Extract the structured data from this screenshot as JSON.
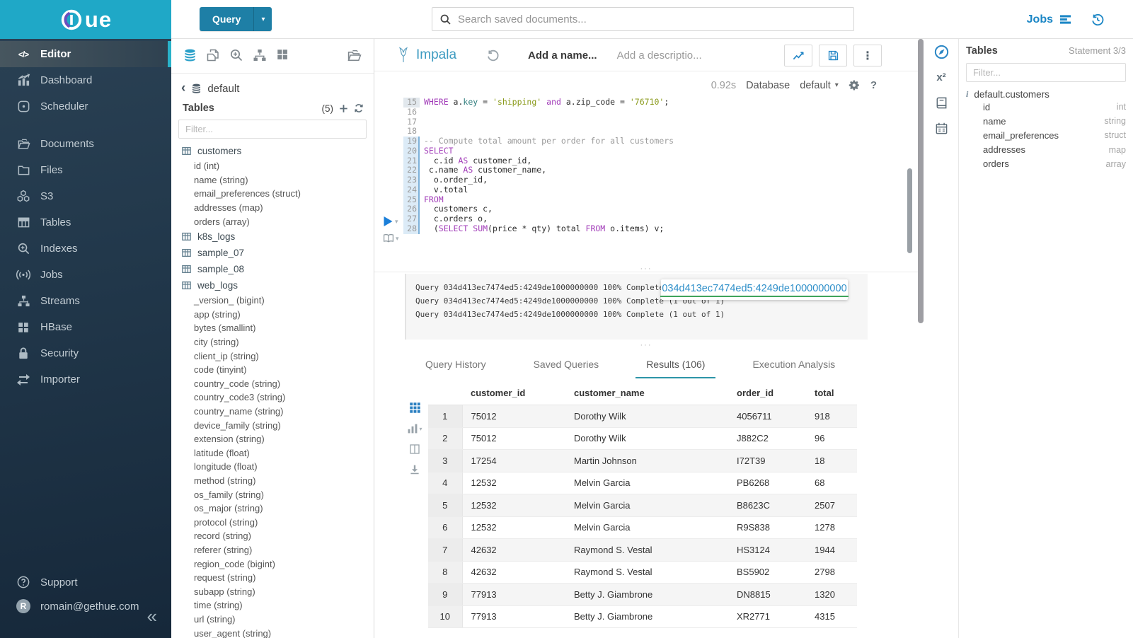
{
  "ui": {
    "caret": "▾",
    "grip": "···",
    "back_arrow": "‹",
    "collapse_icon": "«",
    "kebab": "⋮",
    "functions_glyph": "x²"
  },
  "brand": {
    "logo_text": "ue",
    "accent": "#1FA8C7"
  },
  "topbar": {
    "query_button": "Query",
    "search_placeholder": "Search saved documents...",
    "jobs_label": "Jobs"
  },
  "sidebar": {
    "items": [
      {
        "icon": "code",
        "label": "Editor",
        "active": true
      },
      {
        "icon": "dashboard",
        "label": "Dashboard"
      },
      {
        "icon": "scheduler",
        "label": "Scheduler"
      },
      {
        "spacer": true
      },
      {
        "icon": "documents",
        "label": "Documents"
      },
      {
        "icon": "files",
        "label": "Files"
      },
      {
        "icon": "s3",
        "label": "S3"
      },
      {
        "icon": "tables",
        "label": "Tables"
      },
      {
        "icon": "indexes",
        "label": "Indexes"
      },
      {
        "icon": "jobs",
        "label": "Jobs"
      },
      {
        "icon": "streams",
        "label": "Streams"
      },
      {
        "icon": "hbase",
        "label": "HBase"
      },
      {
        "icon": "security",
        "label": "Security"
      },
      {
        "icon": "importer",
        "label": "Importer"
      }
    ],
    "footer": [
      {
        "icon": "help",
        "label": "Support"
      },
      {
        "icon": "avatar",
        "label": "romain@gethue.com",
        "avatar_letter": "R"
      }
    ]
  },
  "assist_left": {
    "toolbar": [
      {
        "icon": "databases",
        "active": true
      },
      {
        "icon": "documents-copy"
      },
      {
        "icon": "zoom-plus"
      },
      {
        "icon": "sitemap"
      },
      {
        "icon": "apps"
      },
      {
        "icon": "folder-open",
        "right": true
      }
    ],
    "breadcrumb_database": "default",
    "tables_title": "Tables",
    "tables_count": "(5)",
    "filter_placeholder": "Filter...",
    "tree": [
      {
        "name": "customers",
        "columns": [
          {
            "name": "id",
            "type": "int"
          },
          {
            "name": "name",
            "type": "string"
          },
          {
            "name": "email_preferences",
            "type": "struct"
          },
          {
            "name": "addresses",
            "type": "map"
          },
          {
            "name": "orders",
            "type": "array"
          }
        ]
      },
      {
        "name": "k8s_logs",
        "columns": []
      },
      {
        "name": "sample_07",
        "columns": []
      },
      {
        "name": "sample_08",
        "columns": []
      },
      {
        "name": "web_logs",
        "columns": [
          {
            "name": "_version_",
            "type": "bigint"
          },
          {
            "name": "app",
            "type": "string"
          },
          {
            "name": "bytes",
            "type": "smallint"
          },
          {
            "name": "city",
            "type": "string"
          },
          {
            "name": "client_ip",
            "type": "string"
          },
          {
            "name": "code",
            "type": "tinyint"
          },
          {
            "name": "country_code",
            "type": "string"
          },
          {
            "name": "country_code3",
            "type": "string"
          },
          {
            "name": "country_name",
            "type": "string"
          },
          {
            "name": "device_family",
            "type": "string"
          },
          {
            "name": "extension",
            "type": "string"
          },
          {
            "name": "latitude",
            "type": "float"
          },
          {
            "name": "longitude",
            "type": "float"
          },
          {
            "name": "method",
            "type": "string"
          },
          {
            "name": "os_family",
            "type": "string"
          },
          {
            "name": "os_major",
            "type": "string"
          },
          {
            "name": "protocol",
            "type": "string"
          },
          {
            "name": "record",
            "type": "string"
          },
          {
            "name": "referer",
            "type": "string"
          },
          {
            "name": "region_code",
            "type": "bigint"
          },
          {
            "name": "request",
            "type": "string"
          },
          {
            "name": "subapp",
            "type": "string"
          },
          {
            "name": "time",
            "type": "string"
          },
          {
            "name": "url",
            "type": "string"
          },
          {
            "name": "user_agent",
            "type": "string"
          }
        ]
      }
    ]
  },
  "editor": {
    "engine": "Impala",
    "name_placeholder": "Add a name...",
    "description_placeholder": "Add a descriptio...",
    "duration": "0.92s",
    "database_label": "Database",
    "database_value": "default",
    "code_lines": [
      {
        "n": 15,
        "hl": "prev",
        "segs": [
          [
            "kw",
            "WHERE"
          ],
          [
            "t",
            " a."
          ],
          [
            "fld",
            "key"
          ],
          [
            "t",
            " = "
          ],
          [
            "str",
            "'shipping'"
          ],
          [
            "t",
            " "
          ],
          [
            "kw",
            "and"
          ],
          [
            "t",
            " a.zip_code = "
          ],
          [
            "str",
            "'76710'"
          ],
          [
            "t",
            ";"
          ]
        ]
      },
      {
        "n": 16,
        "segs": []
      },
      {
        "n": 17,
        "segs": []
      },
      {
        "n": 18,
        "segs": []
      },
      {
        "n": 19,
        "hl": "cur",
        "segs": [
          [
            "cmt",
            "-- Compute total amount per order for all customers"
          ]
        ]
      },
      {
        "n": 20,
        "hl": "cur",
        "segs": [
          [
            "kw",
            "SELECT"
          ]
        ]
      },
      {
        "n": 21,
        "hl": "cur",
        "segs": [
          [
            "t",
            "  c.id "
          ],
          [
            "kw",
            "AS"
          ],
          [
            "t",
            " customer_id,"
          ]
        ]
      },
      {
        "n": 22,
        "hl": "cur",
        "segs": [
          [
            "t",
            " c.name "
          ],
          [
            "kw",
            "AS"
          ],
          [
            "t",
            " customer_name,"
          ]
        ]
      },
      {
        "n": 23,
        "hl": "cur",
        "segs": [
          [
            "t",
            "  o.order_id,"
          ]
        ]
      },
      {
        "n": 24,
        "hl": "cur",
        "segs": [
          [
            "t",
            "  v.total"
          ]
        ]
      },
      {
        "n": 25,
        "hl": "cur",
        "segs": [
          [
            "kw",
            "FROM"
          ]
        ]
      },
      {
        "n": 26,
        "hl": "cur",
        "segs": [
          [
            "t",
            "  customers c,"
          ]
        ]
      },
      {
        "n": 27,
        "hl": "cur",
        "segs": [
          [
            "t",
            "  c.orders o,"
          ]
        ]
      },
      {
        "n": 28,
        "hl": "cur",
        "segs": [
          [
            "t",
            "  ("
          ],
          [
            "kw",
            "SELECT"
          ],
          [
            "t",
            " "
          ],
          [
            "kw",
            "SUM"
          ],
          [
            "t",
            "(price * qty) total "
          ],
          [
            "kw",
            "FROM"
          ],
          [
            "t",
            " o.items) v;"
          ]
        ]
      }
    ]
  },
  "log": {
    "lines": [
      "Query 034d413ec7474ed5:4249de1000000000 100% Complete (1 out of 1)",
      "Query 034d413ec7474ed5:4249de1000000000 100% Complete (1 out of 1)",
      "Query 034d413ec7474ed5:4249de1000000000 100% Complete (1 out of 1)"
    ],
    "popover_text": "034d413ec7474ed5:4249de1000000000"
  },
  "tabs": [
    {
      "label": "Query History"
    },
    {
      "label": "Saved Queries"
    },
    {
      "label": "Results (106)",
      "active": true
    },
    {
      "label": "Execution Analysis"
    }
  ],
  "results": {
    "columns": [
      "customer_id",
      "customer_name",
      "order_id",
      "total"
    ],
    "rows": [
      [
        "1",
        "75012",
        "Dorothy Wilk",
        "4056711",
        "918"
      ],
      [
        "2",
        "75012",
        "Dorothy Wilk",
        "J882C2",
        "96"
      ],
      [
        "3",
        "17254",
        "Martin Johnson",
        "I72T39",
        "18"
      ],
      [
        "4",
        "12532",
        "Melvin Garcia",
        "PB6268",
        "68"
      ],
      [
        "5",
        "12532",
        "Melvin Garcia",
        "B8623C",
        "2507"
      ],
      [
        "6",
        "12532",
        "Melvin Garcia",
        "R9S838",
        "1278"
      ],
      [
        "7",
        "42632",
        "Raymond S. Vestal",
        "HS3124",
        "1944"
      ],
      [
        "8",
        "42632",
        "Raymond S. Vestal",
        "BS5902",
        "2798"
      ],
      [
        "9",
        "77913",
        "Betty J. Giambrone",
        "DN8815",
        "1320"
      ],
      [
        "10",
        "77913",
        "Betty J. Giambrone",
        "XR2771",
        "4315"
      ]
    ]
  },
  "assist_right": {
    "title": "Tables",
    "statement": "Statement 3/3",
    "filter_placeholder": "Filter...",
    "table_name": "default.customers",
    "columns": [
      {
        "name": "id",
        "type": "int"
      },
      {
        "name": "name",
        "type": "string"
      },
      {
        "name": "email_preferences",
        "type": "struct"
      },
      {
        "name": "addresses",
        "type": "map"
      },
      {
        "name": "orders",
        "type": "array"
      }
    ]
  }
}
